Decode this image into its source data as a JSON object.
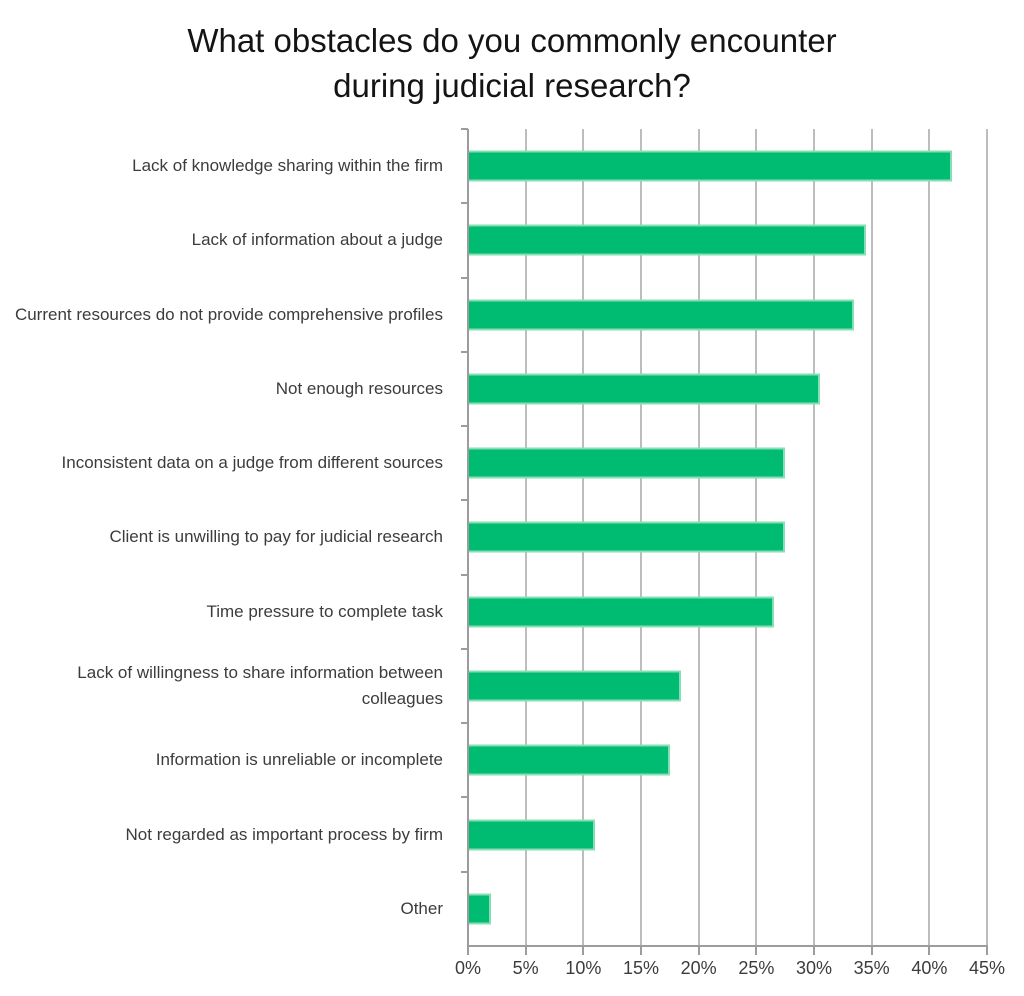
{
  "title": {
    "text": "What obstacles do you commonly encounter during judicial research?",
    "line1": "What obstacles do you commonly encounter",
    "line2": "during judicial research?"
  },
  "chart_data": {
    "type": "bar",
    "orientation": "horizontal",
    "title": "What obstacles do you commonly encounter during judicial research?",
    "categories": [
      "Lack of knowledge sharing within the firm",
      "Lack of information about a judge",
      "Current resources do not provide comprehensive profiles",
      "Not enough resources",
      "Inconsistent data on a judge from different sources",
      "Client is unwilling to pay for judicial research",
      "Time pressure to complete task",
      "Lack of willingness to share information between colleagues",
      "Information is unreliable or incomplete",
      "Not regarded as important process by firm",
      "Other"
    ],
    "values": [
      42,
      34.5,
      33.5,
      30.5,
      27.5,
      27.5,
      26.5,
      18.5,
      17.5,
      11,
      2
    ],
    "unit": "%",
    "xlabel": "",
    "ylabel": "",
    "xlim": [
      0,
      45
    ],
    "x_tick_values": [
      0,
      5,
      10,
      15,
      20,
      25,
      30,
      35,
      40,
      45
    ],
    "x_tick_labels": [
      "0%",
      "5%",
      "10%",
      "15%",
      "20%",
      "25%",
      "30%",
      "35%",
      "40%",
      "45%"
    ],
    "grid": "vertical-only",
    "legend": "none",
    "colors": {
      "bar_fill": "#00BC72",
      "bar_border": "#85DEB4",
      "gridline": "#BDBDBD",
      "axis": "#9C9C9C",
      "label_text": "#3C3C3C",
      "title_text": "#141414"
    }
  }
}
